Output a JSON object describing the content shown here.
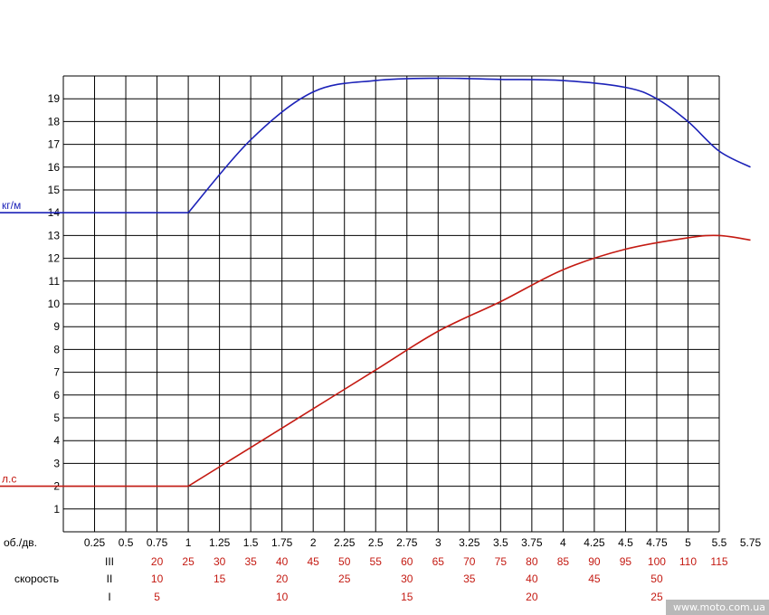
{
  "chart_data": {
    "type": "line",
    "x_axis_title": "об./дв.",
    "x_ticks": [
      "0.25",
      "0.5",
      "0.75",
      "1",
      "1.25",
      "1.5",
      "1.75",
      "2",
      "2.25",
      "2.5",
      "2.75",
      "3",
      "3.25",
      "3.5",
      "3.75",
      "4",
      "4.25",
      "4.5",
      "4.75",
      "5",
      "5.5",
      "5.75"
    ],
    "y_ticks": [
      1,
      2,
      3,
      4,
      5,
      6,
      7,
      8,
      9,
      10,
      11,
      12,
      13,
      14,
      15,
      16,
      17,
      18,
      19
    ],
    "ylim": [
      0,
      20
    ],
    "grid": true,
    "speed_label": "скорость",
    "gear_rows": [
      {
        "gear": "III",
        "values": [
          "20",
          "25",
          "30",
          "35",
          "40",
          "45",
          "50",
          "55",
          "60",
          "65",
          "70",
          "75",
          "80",
          "85",
          "90",
          "95",
          "100",
          "110",
          "115"
        ]
      },
      {
        "gear": "II",
        "values": [
          "10",
          "15",
          "20",
          "25",
          "30",
          "35",
          "40",
          "45",
          "50"
        ]
      },
      {
        "gear": "I",
        "values": [
          "5",
          "10",
          "15",
          "20",
          "25"
        ]
      }
    ],
    "series": [
      {
        "name": "кг/м",
        "color": "#1c22b8",
        "x": [
          1,
          1.5,
          2,
          2.5,
          3,
          3.5,
          4,
          4.5,
          4.75,
          5,
          5.5,
          5.75
        ],
        "y": [
          14,
          17.2,
          19.3,
          19.8,
          19.9,
          19.85,
          19.8,
          19.5,
          19.0,
          18.0,
          16.7,
          16.0
        ]
      },
      {
        "name": "л.с",
        "color": "#c41a12",
        "x": [
          1,
          1.5,
          2,
          2.5,
          3,
          3.5,
          4,
          4.5,
          5,
          5.5,
          5.75
        ],
        "y": [
          2,
          3.7,
          5.4,
          7.1,
          8.8,
          10.1,
          11.5,
          12.4,
          12.9,
          13.0,
          12.8
        ]
      }
    ],
    "baseline_segments": [
      {
        "series": "кг/м",
        "y": 14
      },
      {
        "series": "л.с",
        "y": 2
      }
    ]
  },
  "watermark": "www.moto.com.ua"
}
